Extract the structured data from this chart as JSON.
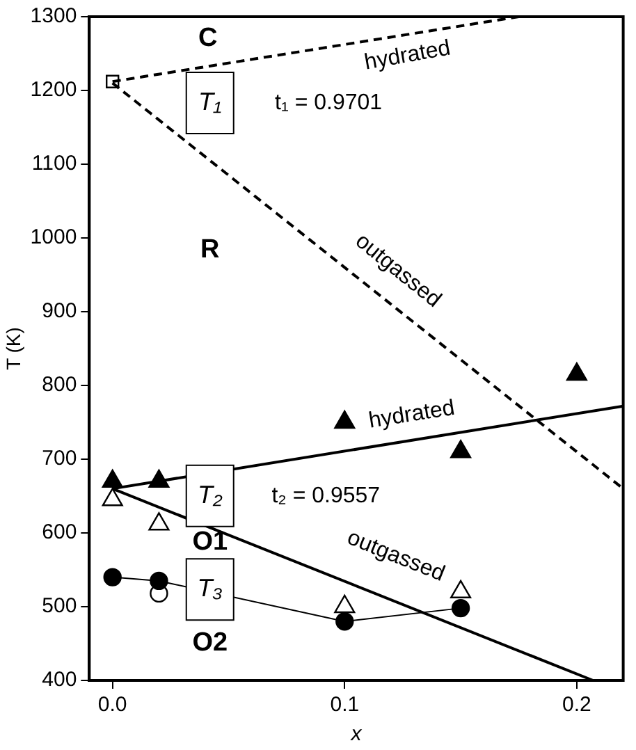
{
  "chart_data": {
    "type": "scatter",
    "xlabel": "x",
    "ylabel": "T (K)",
    "xlim": [
      -0.01,
      0.22
    ],
    "xticks": [
      {
        "value": 0,
        "label": "0.0"
      },
      {
        "value": 0.1,
        "label": "0.1"
      },
      {
        "value": 0.2,
        "label": "0.2"
      }
    ],
    "ylim": [
      400,
      1300
    ],
    "yticks": [
      400,
      500,
      600,
      700,
      800,
      900,
      1000,
      1100,
      1200,
      1300
    ],
    "grid": false,
    "legend": false,
    "series": [
      {
        "type": "line",
        "line_style": "dashed",
        "marker": "none",
        "color": "#000000",
        "x": [
          0,
          0.175
        ],
        "values": [
          1212,
          1300
        ]
      },
      {
        "type": "line",
        "line_style": "dashed",
        "marker": "none",
        "color": "#000000",
        "x": [
          0,
          0.22
        ],
        "values": [
          1210,
          660
        ]
      },
      {
        "type": "line",
        "line_style": "solid",
        "marker": "none",
        "color": "#000000",
        "x": [
          0,
          0.22
        ],
        "values": [
          660,
          772
        ]
      },
      {
        "type": "line",
        "line_style": "solid",
        "marker": "none",
        "color": "#000000",
        "x": [
          0,
          0.207
        ],
        "values": [
          660,
          400
        ]
      },
      {
        "type": "line",
        "line_style": "solid",
        "marker": "circle",
        "color": "#000000",
        "x": [
          0,
          0.02,
          0.1,
          0.15
        ],
        "values": [
          540,
          535,
          480,
          498
        ]
      },
      {
        "type": "scatter",
        "marker": "triangle",
        "color": "#000000",
        "x": [
          0,
          0.02,
          0.1,
          0.15,
          0.2
        ],
        "values": [
          670,
          670,
          750,
          710,
          815
        ]
      },
      {
        "type": "scatter",
        "marker": "triangle",
        "color": "#ffffff",
        "x": [
          0,
          0.02,
          0.1,
          0.15
        ],
        "values": [
          645,
          612,
          500,
          520
        ]
      },
      {
        "type": "scatter",
        "marker": "circle",
        "color": "#ffffff",
        "x": [
          0.02
        ],
        "values": [
          518
        ]
      },
      {
        "type": "scatter",
        "marker": "square",
        "color": "#ffffff",
        "x": [
          0
        ],
        "values": [
          1212
        ]
      }
    ],
    "annotations": [
      "C",
      "hydrated",
      "T₁",
      "t₁ = 0.9701",
      "R",
      "outgassed",
      "hydrated",
      "T₂",
      "t₂ = 0.9557",
      "O1",
      "outgassed",
      "T₃",
      "O2"
    ]
  }
}
